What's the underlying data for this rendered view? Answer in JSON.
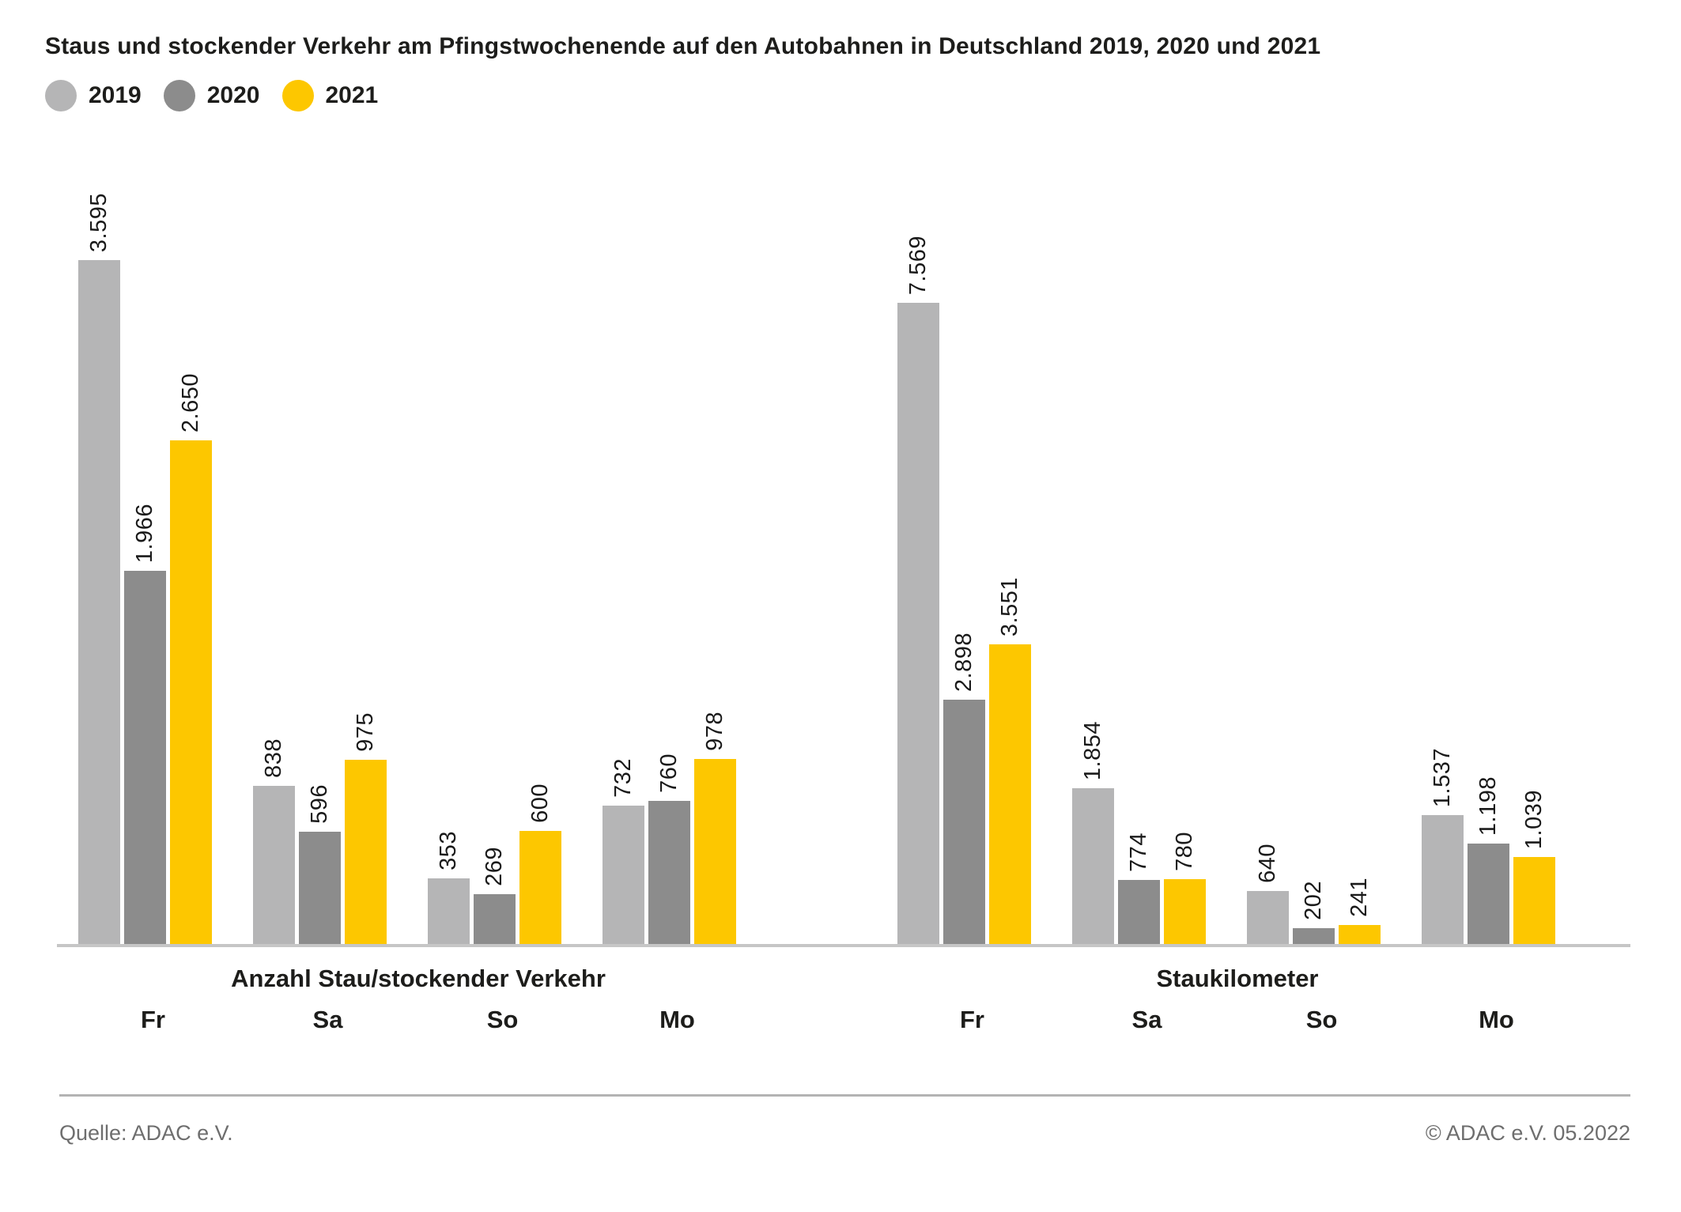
{
  "title": "Staus und stockender Verkehr am Pfingstwochenende auf den Autobahnen in Deutschland 2019, 2020 und 2021",
  "legend": [
    {
      "label": "2019",
      "color": "#b5b5b6"
    },
    {
      "label": "2020",
      "color": "#8c8c8c"
    },
    {
      "label": "2021",
      "color": "#fdc700"
    }
  ],
  "footer": {
    "source": "Quelle: ADAC e.V.",
    "copyright": "© ADAC e.V. 05.2022"
  },
  "chart_data": [
    {
      "type": "bar",
      "title": "Anzahl Stau/stockender Verkehr",
      "categories": [
        "Fr",
        "Sa",
        "So",
        "Mo"
      ],
      "legend_position": "top-left",
      "grid": false,
      "series": [
        {
          "name": "2019",
          "color": "#b5b5b6",
          "values": [
            3595,
            838,
            353,
            732
          ],
          "labels": [
            "3.595",
            "838",
            "353",
            "732"
          ]
        },
        {
          "name": "2020",
          "color": "#8c8c8c",
          "values": [
            1966,
            596,
            269,
            760
          ],
          "labels": [
            "1.966",
            "596",
            "269",
            "760"
          ]
        },
        {
          "name": "2021",
          "color": "#fdc700",
          "values": [
            2650,
            975,
            600,
            978
          ],
          "labels": [
            "2.650",
            "975",
            "600",
            "978"
          ]
        }
      ]
    },
    {
      "type": "bar",
      "title": "Staukilometer",
      "categories": [
        "Fr",
        "Sa",
        "So",
        "Mo"
      ],
      "legend_position": "top-left",
      "grid": false,
      "series": [
        {
          "name": "2019",
          "color": "#b5b5b6",
          "values": [
            7569,
            1854,
            640,
            1537
          ],
          "labels": [
            "7.569",
            "1.854",
            "640",
            "1.537"
          ]
        },
        {
          "name": "2020",
          "color": "#8c8c8c",
          "values": [
            2898,
            774,
            202,
            1198
          ],
          "labels": [
            "2.898",
            "774",
            "202",
            "1.198"
          ]
        },
        {
          "name": "2021",
          "color": "#fdc700",
          "values": [
            3551,
            780,
            241,
            1039
          ],
          "labels": [
            "3.551",
            "780",
            "241",
            "1.039"
          ]
        }
      ]
    }
  ]
}
